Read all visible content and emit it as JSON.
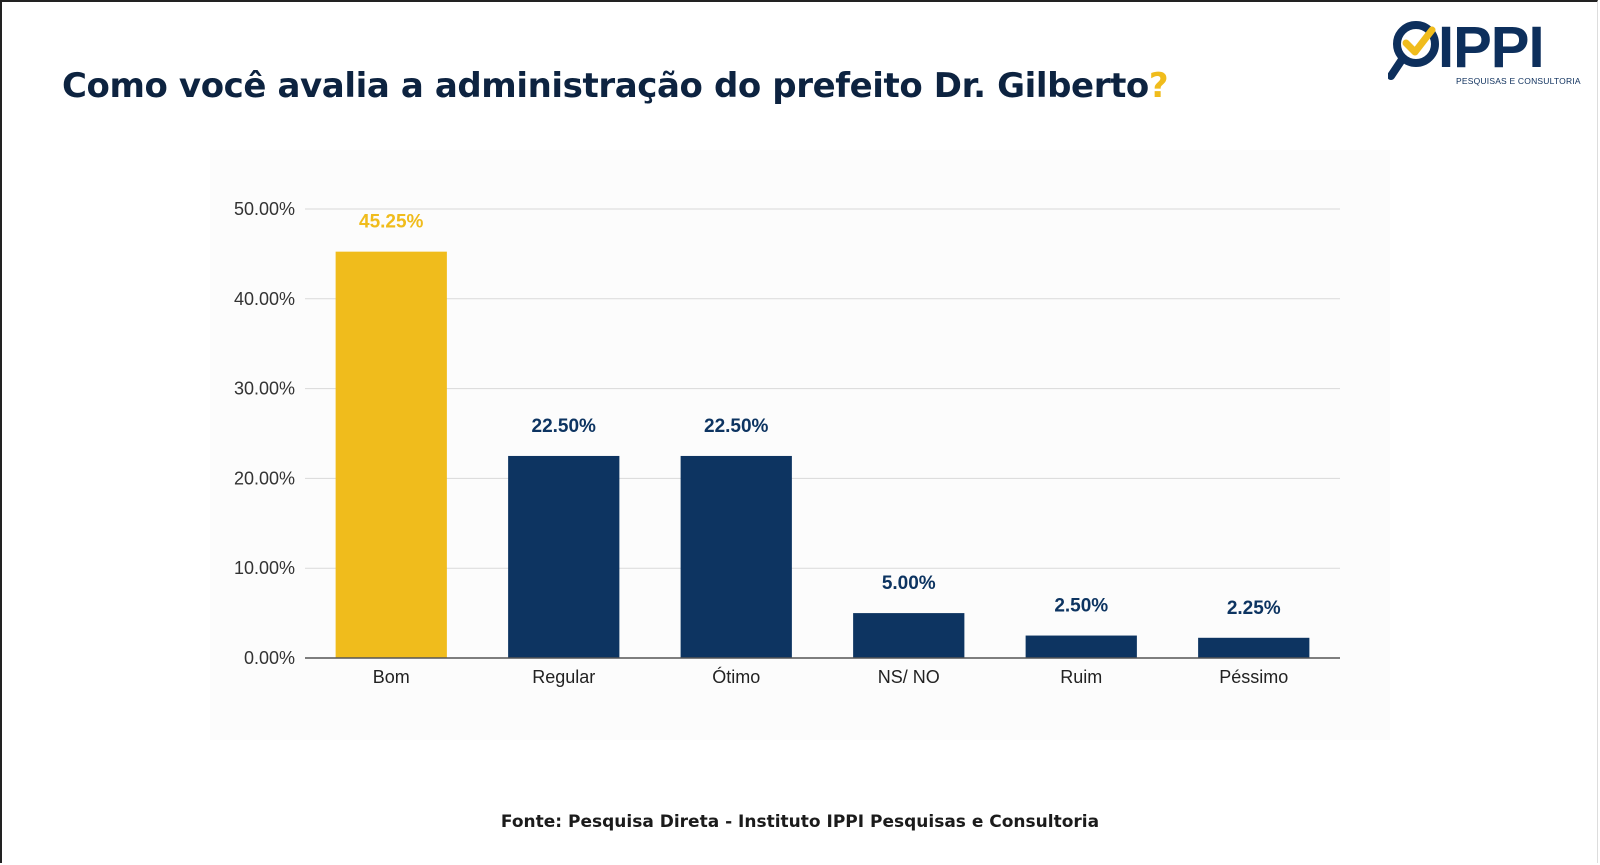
{
  "title": {
    "text": "Como você avalia a administração do prefeito Dr. Gilberto",
    "qmark": "?"
  },
  "logo": {
    "name": "IPPI",
    "tagline": "PESQUISAS E CONSULTORIA"
  },
  "colors": {
    "highlight": "#f0bc1c",
    "bar": "#0d3461",
    "title": "#0d2340",
    "grid": "#d9d9d9",
    "axis": "#555555"
  },
  "chart_data": {
    "type": "bar",
    "title": "",
    "xlabel": "",
    "ylabel": "",
    "categories": [
      "Bom",
      "Regular",
      "Ótimo",
      "NS/ NO",
      "Ruim",
      "Péssimo"
    ],
    "values": [
      45.25,
      22.5,
      22.5,
      5.0,
      2.5,
      2.25
    ],
    "data_labels": [
      "45.25%",
      "22.50%",
      "22.50%",
      "5.00%",
      "2.50%",
      "2.25%"
    ],
    "highlight_index": 0,
    "ylim": [
      0,
      50
    ],
    "y_ticks": [
      0,
      10,
      20,
      30,
      40,
      50
    ],
    "y_tick_labels": [
      "0.00%",
      "10.00%",
      "20.00%",
      "30.00%",
      "40.00%",
      "50.00%"
    ],
    "grid": true,
    "legend": "none"
  },
  "source": "Fonte: Pesquisa Direta - Instituto IPPI Pesquisas e Consultoria"
}
